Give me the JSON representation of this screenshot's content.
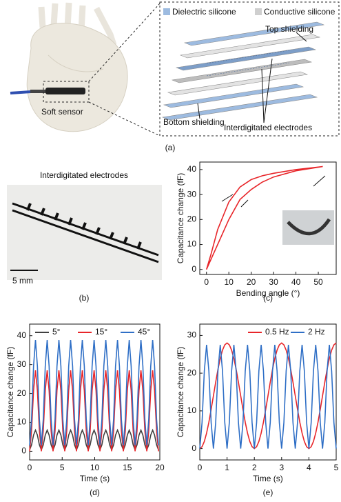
{
  "panel_a": {
    "legend": [
      "Dielectric silicone",
      "Conductive silicone"
    ],
    "top_label": "Top shielding",
    "bottom_label": "Bottom shielding",
    "electrodes_label": "Interdigitated electrodes",
    "sensor_label": "Soft sensor",
    "caption": "(a)"
  },
  "panel_b": {
    "title": "Interdigitated electrodes",
    "scale": "5 mm",
    "caption": "(b)"
  },
  "chart_data": [
    {
      "type": "line",
      "caption": "(c)",
      "xlabel": "Bending angle (°)",
      "ylabel": "Capacitance change (fF)",
      "x": [
        0,
        2,
        5,
        10,
        15,
        20,
        25,
        30,
        40,
        52,
        40,
        30,
        25,
        20,
        15,
        10,
        5,
        2,
        0
      ],
      "series": [
        {
          "color": "#e8262a",
          "values": [
            0,
            4,
            10,
            20,
            28,
            32,
            35,
            37,
            39.5,
            41.2,
            40,
            38.5,
            37.5,
            36,
            33,
            27,
            16,
            6,
            0
          ]
        }
      ],
      "xlim": [
        -3,
        58
      ],
      "ylim": [
        -2,
        43
      ],
      "xticks": [
        0,
        10,
        20,
        30,
        40,
        50
      ],
      "yticks": [
        0,
        10,
        20,
        30,
        40
      ]
    },
    {
      "type": "line",
      "caption": "(d)",
      "xlabel": "Time (s)",
      "ylabel": "Capacitance change (fF)",
      "legend": "top-left",
      "x": [
        0,
        0.3,
        0.6,
        0.9,
        1.2,
        1.5,
        1.8,
        2.1,
        2.4,
        2.7,
        3,
        3.3,
        3.6,
        3.9,
        4.2,
        4.5,
        4.8,
        5.1,
        5.4,
        5.7,
        6,
        6.3,
        6.6,
        6.9,
        7.2,
        7.5,
        7.8,
        8.1,
        8.4,
        8.7,
        9,
        9.3,
        9.6,
        9.9,
        10.2,
        10.5,
        10.8,
        11.1,
        11.4,
        11.7,
        12,
        12.3,
        12.6,
        12.9,
        13.2,
        13.5,
        13.8,
        14.1,
        14.4,
        14.7,
        15,
        15.3,
        15.6,
        15.9,
        16.2,
        16.5,
        16.8,
        17.1,
        17.4,
        17.7,
        18,
        18.3,
        18.6,
        18.9,
        19.2,
        19.5,
        19.8
      ],
      "series": [
        {
          "name": "5°",
          "color": "#404040",
          "values": [
            0.5,
            2.2,
            5.6,
            7.3,
            5.6,
            2.2,
            0.5,
            2.2,
            5.6,
            7.3,
            5.6,
            2.2,
            0.5,
            2.2,
            5.6,
            7.3,
            5.6,
            2.2,
            0.5,
            2.2,
            5.6,
            7.3,
            5.6,
            2.2,
            0.5,
            2.2,
            5.6,
            7.3,
            5.6,
            2.2,
            0.5,
            2.2,
            5.6,
            7.3,
            5.6,
            2.2,
            0.5,
            2.2,
            5.6,
            7.3,
            5.6,
            2.2,
            0.5,
            2.2,
            5.6,
            7.3,
            5.6,
            2.2,
            0.5,
            2.2,
            5.6,
            7.3,
            5.6,
            2.2,
            0.5,
            2.2,
            5.6,
            7.3,
            5.6,
            2.2,
            0.5,
            2.2,
            5.6,
            7.3,
            5.6,
            2.2,
            0.5
          ]
        },
        {
          "name": "15°",
          "color": "#e8262a",
          "values": [
            0,
            7,
            21,
            28,
            21,
            7,
            0,
            7,
            21,
            28,
            21,
            7,
            0,
            7,
            21,
            28,
            21,
            7,
            0,
            7,
            21,
            28,
            21,
            7,
            0,
            7,
            21,
            28,
            21,
            7,
            0,
            7,
            21,
            28,
            21,
            7,
            0,
            7,
            21,
            28,
            21,
            7,
            0,
            7,
            21,
            28,
            21,
            7,
            0,
            7,
            21,
            28,
            21,
            7,
            0,
            7,
            21,
            28,
            21,
            7,
            0,
            7,
            21,
            28,
            21,
            7,
            0
          ]
        },
        {
          "name": "45°",
          "color": "#2f6fc6",
          "values": [
            2,
            11.1,
            29.4,
            38.5,
            29.4,
            11.1,
            2,
            11.1,
            29.4,
            38.5,
            29.4,
            11.1,
            2,
            11.1,
            29.4,
            38.5,
            29.4,
            11.1,
            2,
            11.1,
            29.4,
            38.5,
            29.4,
            11.1,
            2,
            11.1,
            29.4,
            38.5,
            29.4,
            11.1,
            2,
            11.1,
            29.4,
            38.5,
            29.4,
            11.1,
            2,
            11.1,
            29.4,
            38.5,
            29.4,
            11.1,
            2,
            11.1,
            29.4,
            38.5,
            29.4,
            11.1,
            2,
            11.1,
            29.4,
            38.5,
            29.4,
            11.1,
            2,
            11.1,
            29.4,
            38.5,
            29.4,
            11.1,
            2,
            11.1,
            29.4,
            38.5,
            29.4,
            11.1,
            2
          ]
        }
      ],
      "xlim": [
        0,
        20
      ],
      "ylim": [
        -3,
        44
      ],
      "xticks": [
        0,
        5,
        10,
        15,
        20
      ],
      "yticks": [
        0,
        10,
        20,
        30,
        40
      ]
    },
    {
      "type": "line",
      "caption": "(e)",
      "xlabel": "Time (s)",
      "ylabel": "Capacitance change (fF)",
      "legend": "top-right",
      "x": [
        0,
        0.083,
        0.167,
        0.25,
        0.333,
        0.417,
        0.5,
        0.583,
        0.667,
        0.75,
        0.833,
        0.917,
        1,
        1.083,
        1.167,
        1.25,
        1.333,
        1.417,
        1.5,
        1.583,
        1.667,
        1.75,
        1.833,
        1.917,
        2,
        2.083,
        2.167,
        2.25,
        2.333,
        2.417,
        2.5,
        2.583,
        2.667,
        2.75,
        2.833,
        2.917,
        3,
        3.083,
        3.167,
        3.25,
        3.333,
        3.417,
        3.5,
        3.583,
        3.667,
        3.75,
        3.833,
        3.917,
        4,
        4.083,
        4.167,
        4.25,
        4.333,
        4.417,
        4.5,
        4.583,
        4.667,
        4.75,
        4.833,
        4.917,
        5
      ],
      "series": [
        {
          "name": "0.5 Hz",
          "color": "#e8262a",
          "values": [
            0,
            0.5,
            1.9,
            4.1,
            7,
            10.4,
            14,
            17.6,
            21,
            23.9,
            26.1,
            27.5,
            28,
            27.5,
            26.1,
            23.9,
            21,
            17.6,
            14,
            10.4,
            7,
            4.1,
            1.9,
            0.5,
            0,
            0.5,
            1.9,
            4.1,
            7,
            10.4,
            14,
            17.6,
            21,
            23.9,
            26.1,
            27.5,
            28,
            27.5,
            26.1,
            23.9,
            21,
            17.6,
            14,
            10.4,
            7,
            4.1,
            1.9,
            0.5,
            0,
            0.5,
            1.9,
            4.1,
            7,
            10.4,
            14,
            17.6,
            21,
            23.9,
            26.1,
            27.5,
            28
          ]
        },
        {
          "name": "2 Hz",
          "color": "#2f6fc6",
          "values": [
            0,
            6.9,
            20.6,
            27.5,
            20.6,
            6.9,
            0,
            6.9,
            20.6,
            27.5,
            20.6,
            6.9,
            0,
            6.9,
            20.6,
            27.5,
            20.6,
            6.9,
            0,
            6.9,
            20.6,
            27.5,
            20.6,
            6.9,
            0,
            6.9,
            20.6,
            27.5,
            20.6,
            6.9,
            0,
            6.9,
            20.6,
            27.5,
            20.6,
            6.9,
            0,
            6.9,
            20.6,
            27.5,
            20.6,
            6.9,
            0,
            6.9,
            20.6,
            27.5,
            20.6,
            6.9,
            0,
            6.9,
            20.6,
            27.5,
            20.6,
            6.9,
            0,
            6.9,
            20.6,
            27.5,
            20.6,
            6.9,
            0
          ]
        }
      ],
      "xlim": [
        0,
        5
      ],
      "ylim": [
        -3,
        33
      ],
      "xticks": [
        0,
        1,
        2,
        3,
        4,
        5
      ],
      "yticks": [
        0,
        10,
        20,
        30
      ]
    }
  ]
}
